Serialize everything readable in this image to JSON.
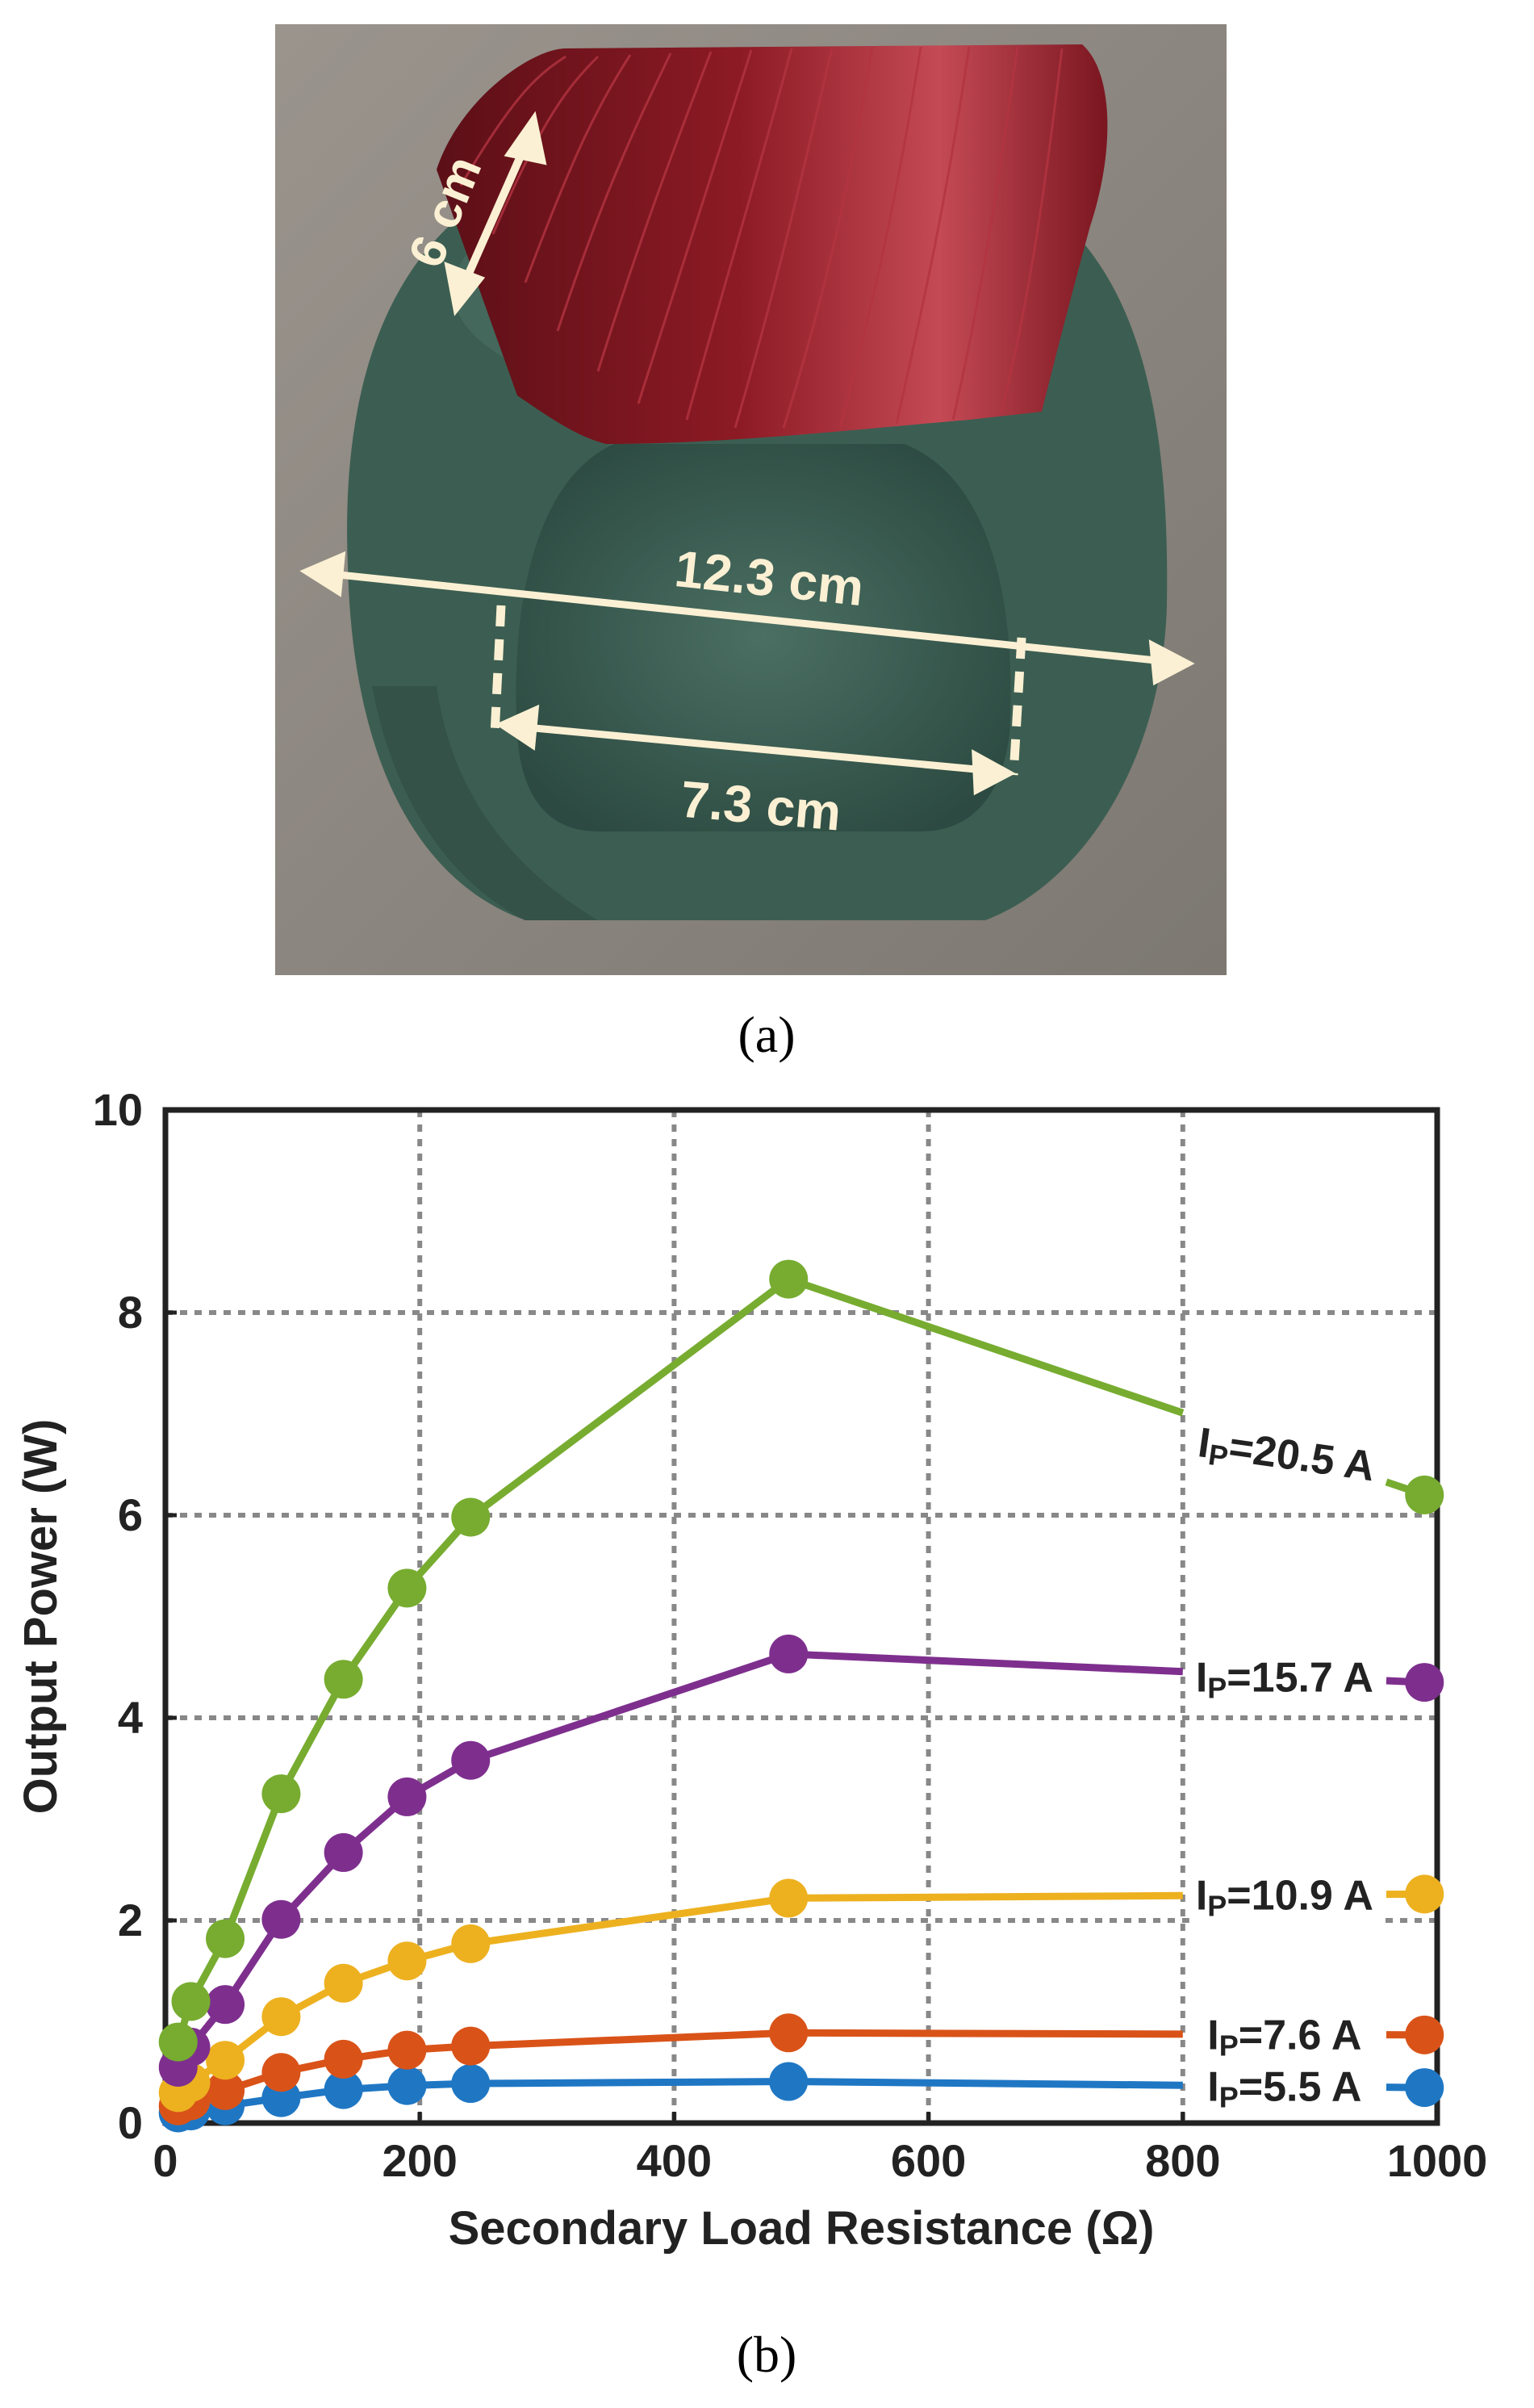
{
  "figure": {
    "panel_a_label": "(a)",
    "panel_b_label": "(b)"
  },
  "photo": {
    "dimensions": {
      "height": "6 cm",
      "outer_diameter": "12.3 cm",
      "inner_diameter": "7.3 cm"
    },
    "colors": {
      "background": "#8a857f",
      "core": "#3c5e52",
      "core_dark": "#25423a",
      "wire": "#8c1a24",
      "annotation": "#fbf0d3"
    }
  },
  "chart_data": {
    "type": "line",
    "xlabel": "Secondary Load Resistance (Ω)",
    "ylabel": "Output Power (W)",
    "xlim": [
      0,
      1000
    ],
    "ylim": [
      0,
      10
    ],
    "xticks": [
      0,
      200,
      400,
      600,
      800,
      1000
    ],
    "yticks": [
      0,
      2,
      4,
      6,
      8,
      10
    ],
    "grid": true,
    "legend": "inline labels at right end of each series",
    "x": [
      10,
      20,
      47,
      91,
      140,
      190,
      240,
      490,
      990
    ],
    "series": [
      {
        "name": "IP=5.5 A",
        "label_main": "I",
        "label_sub": "P",
        "label_rest": "=5.5 A",
        "color": "#1f77c4",
        "values": [
          0.1,
          0.12,
          0.17,
          0.25,
          0.33,
          0.37,
          0.39,
          0.41,
          0.35
        ]
      },
      {
        "name": "IP=7.6 A",
        "label_main": "I",
        "label_sub": "P",
        "label_rest": "=7.6 A",
        "color": "#d95319",
        "values": [
          0.17,
          0.22,
          0.32,
          0.5,
          0.63,
          0.72,
          0.76,
          0.89,
          0.87
        ]
      },
      {
        "name": "IP=10.9 A",
        "label_main": "I",
        "label_sub": "P",
        "label_rest": "=10.9 A",
        "color": "#edb120",
        "values": [
          0.3,
          0.4,
          0.62,
          1.05,
          1.38,
          1.6,
          1.77,
          2.22,
          2.26
        ]
      },
      {
        "name": "IP=15.7 A",
        "label_main": "I",
        "label_sub": "P",
        "label_rest": "=15.7 A",
        "color": "#7e2f8e",
        "values": [
          0.55,
          0.75,
          1.17,
          2.01,
          2.67,
          3.22,
          3.58,
          4.63,
          4.35
        ]
      },
      {
        "name": "IP=20.5 A",
        "label_main": "I",
        "label_sub": "P",
        "label_rest": "=20.5 A",
        "color": "#77ac30",
        "values": [
          0.8,
          1.2,
          1.82,
          3.25,
          4.38,
          5.28,
          5.98,
          8.33,
          6.2
        ]
      }
    ]
  }
}
